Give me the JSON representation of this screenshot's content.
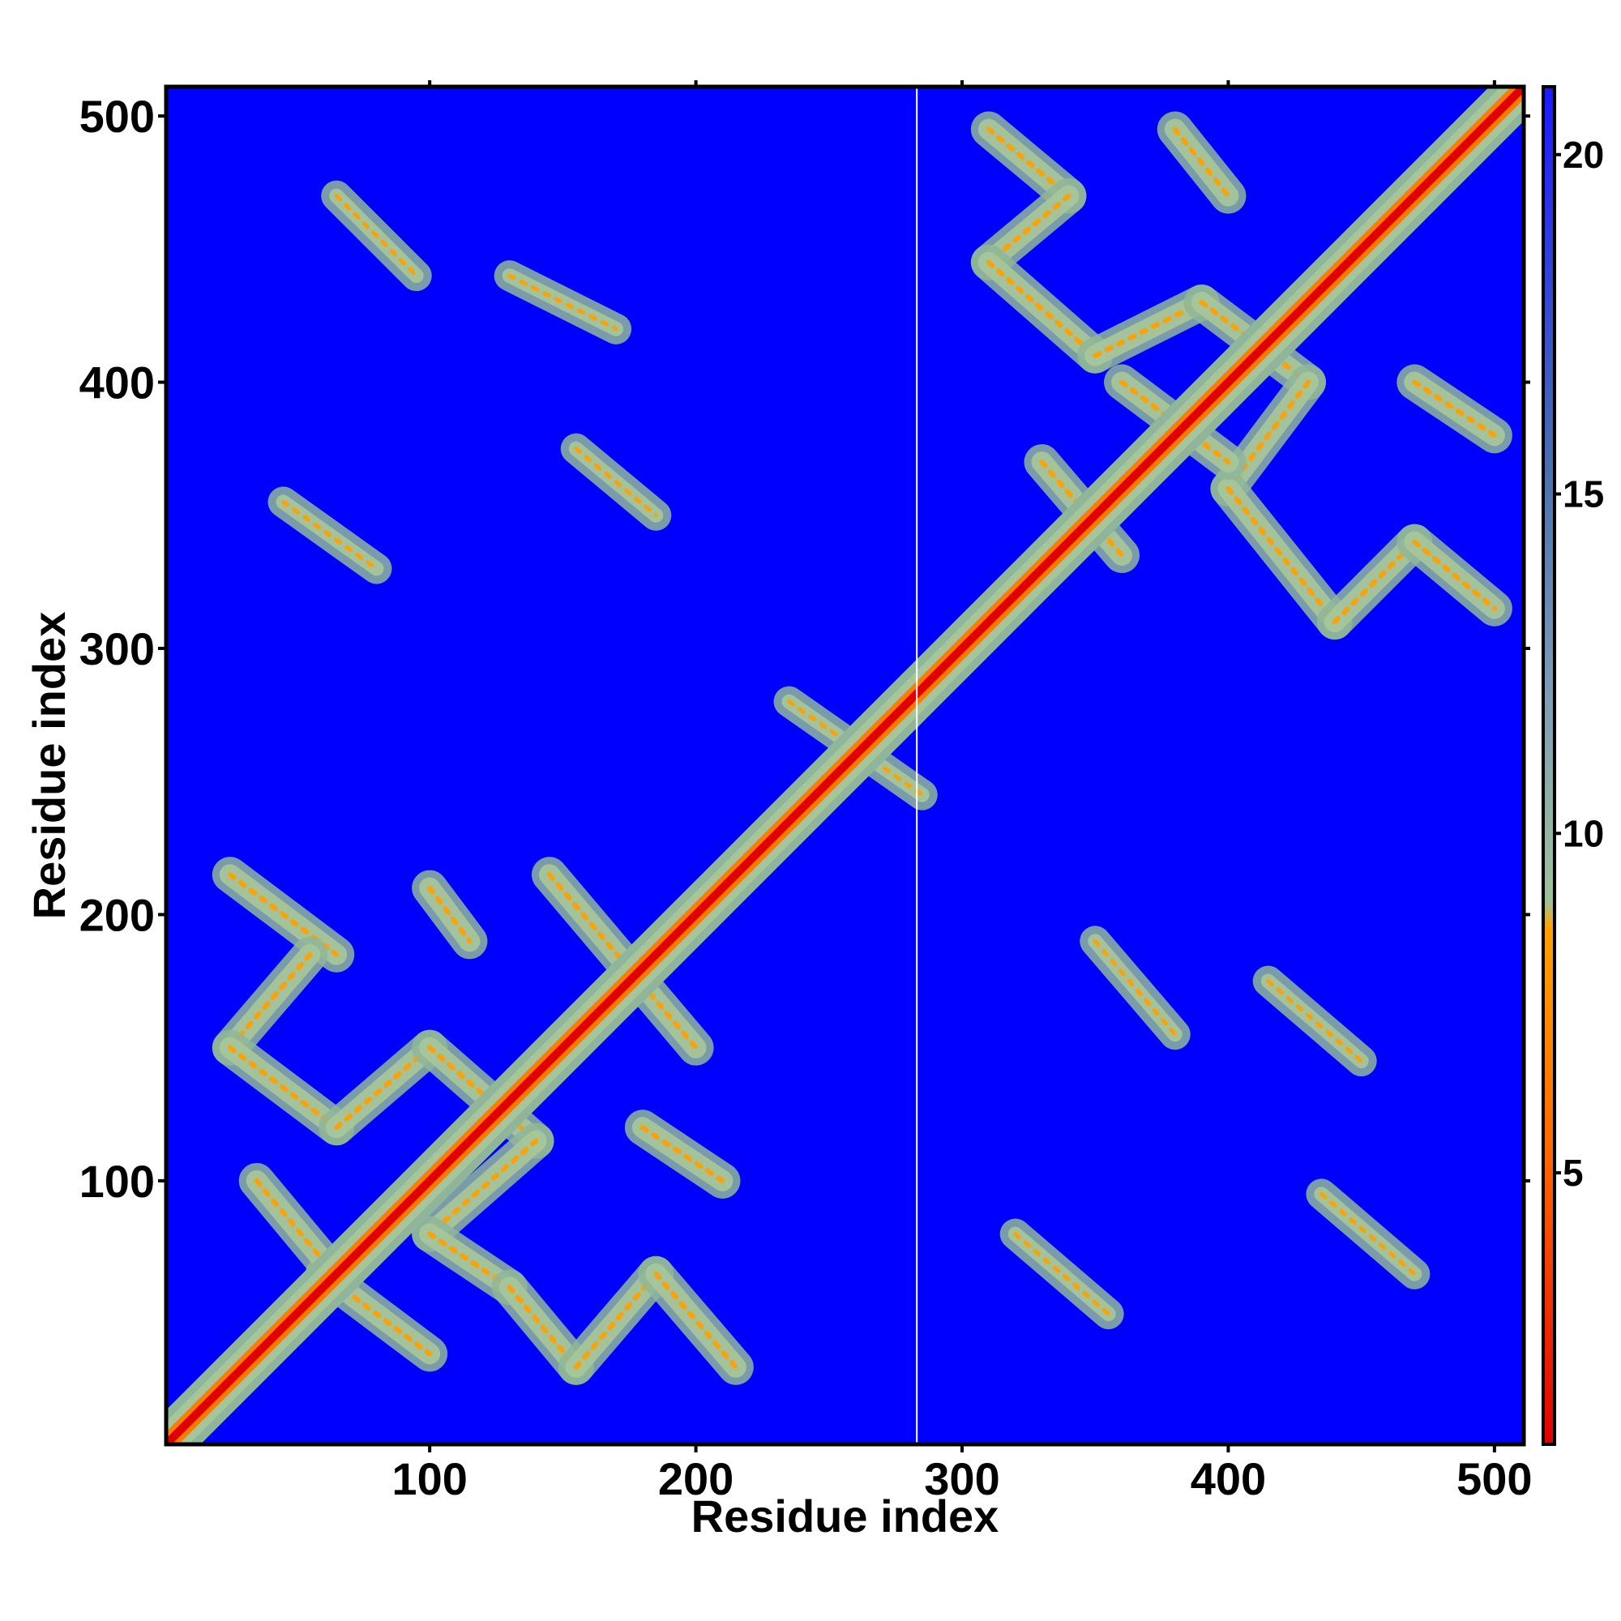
{
  "chart_data": {
    "type": "heatmap",
    "title": "",
    "xlabel": "Residue index",
    "ylabel": "Residue index",
    "xlim": [
      1,
      511
    ],
    "ylim": [
      1,
      511
    ],
    "x_ticks": [
      "100",
      "200",
      "300",
      "400",
      "500"
    ],
    "y_ticks": [
      "100",
      "200",
      "300",
      "400",
      "500"
    ],
    "x_tick_values": [
      100,
      200,
      300,
      400,
      500
    ],
    "y_tick_values": [
      100,
      200,
      300,
      400,
      500
    ],
    "divider_residue": 283,
    "colorbar": {
      "range": [
        1,
        21
      ],
      "ticks": [
        "5",
        "10",
        "15",
        "20"
      ],
      "tick_values": [
        5,
        10,
        15,
        20
      ],
      "colors": [
        "#e00000",
        "#ff6a00",
        "#ffa000",
        "#9fc29a",
        "#7f9db5",
        "#4a6fae",
        "#1a1aff"
      ]
    },
    "background_color": "#0000ff",
    "matrix_description_values": {
      "diagonal": [
        1,
        511
      ],
      "contact_bands_domain1": [
        {
          "x": [
            25,
            65
          ],
          "y": [
            215,
            185
          ]
        },
        {
          "x": [
            55,
            25
          ],
          "y": [
            185,
            150
          ]
        },
        {
          "x": [
            25,
            65
          ],
          "y": [
            150,
            120
          ]
        },
        {
          "x": [
            65,
            100
          ],
          "y": [
            120,
            150
          ]
        },
        {
          "x": [
            100,
            140
          ],
          "y": [
            150,
            115
          ]
        },
        {
          "x": [
            140,
            100
          ],
          "y": [
            115,
            80
          ]
        },
        {
          "x": [
            100,
            130
          ],
          "y": [
            80,
            60
          ]
        },
        {
          "x": [
            60,
            100
          ],
          "y": [
            65,
            35
          ]
        },
        {
          "x": [
            130,
            155
          ],
          "y": [
            60,
            30
          ]
        },
        {
          "x": [
            155,
            185
          ],
          "y": [
            30,
            65
          ]
        },
        {
          "x": [
            185,
            215
          ],
          "y": [
            65,
            30
          ]
        },
        {
          "x": [
            180,
            210
          ],
          "y": [
            120,
            100
          ]
        },
        {
          "x": [
            100,
            115
          ],
          "y": [
            210,
            190
          ]
        },
        {
          "x": [
            145,
            200
          ],
          "y": [
            215,
            150
          ]
        },
        {
          "x": [
            35,
            60
          ],
          "y": [
            100,
            70
          ]
        }
      ],
      "contact_bands_domain2": [
        {
          "x": [
            310,
            340
          ],
          "y": [
            495,
            470
          ]
        },
        {
          "x": [
            340,
            310
          ],
          "y": [
            470,
            445
          ]
        },
        {
          "x": [
            310,
            350
          ],
          "y": [
            445,
            410
          ]
        },
        {
          "x": [
            350,
            390
          ],
          "y": [
            410,
            430
          ]
        },
        {
          "x": [
            390,
            430
          ],
          "y": [
            430,
            400
          ]
        },
        {
          "x": [
            430,
            400
          ],
          "y": [
            400,
            360
          ]
        },
        {
          "x": [
            400,
            440
          ],
          "y": [
            360,
            310
          ]
        },
        {
          "x": [
            440,
            470
          ],
          "y": [
            310,
            340
          ]
        },
        {
          "x": [
            470,
            500
          ],
          "y": [
            340,
            315
          ]
        },
        {
          "x": [
            470,
            500
          ],
          "y": [
            400,
            380
          ]
        },
        {
          "x": [
            380,
            400
          ],
          "y": [
            495,
            470
          ]
        },
        {
          "x": [
            330,
            360
          ],
          "y": [
            370,
            335
          ]
        },
        {
          "x": [
            360,
            400
          ],
          "y": [
            400,
            370
          ]
        }
      ],
      "inter_domain_blocks": [
        {
          "x": [
            65,
            95
          ],
          "y": [
            470,
            440
          ]
        },
        {
          "x": [
            130,
            170
          ],
          "y": [
            440,
            420
          ]
        },
        {
          "x": [
            155,
            185
          ],
          "y": [
            375,
            350
          ]
        },
        {
          "x": [
            45,
            80
          ],
          "y": [
            355,
            330
          ]
        },
        {
          "x": [
            350,
            380
          ],
          "y": [
            190,
            155
          ]
        },
        {
          "x": [
            415,
            450
          ],
          "y": [
            175,
            145
          ]
        },
        {
          "x": [
            435,
            470
          ],
          "y": [
            95,
            65
          ]
        },
        {
          "x": [
            320,
            355
          ],
          "y": [
            80,
            50
          ]
        },
        {
          "x": [
            235,
            285
          ],
          "y": [
            280,
            245
          ]
        }
      ]
    }
  }
}
